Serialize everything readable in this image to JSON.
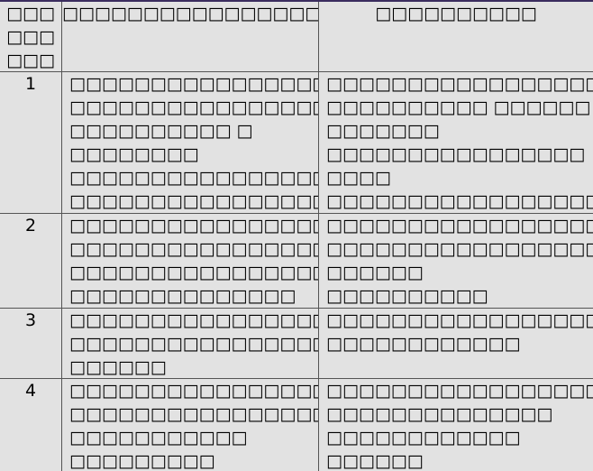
{
  "table": {
    "headers": [
      "□□□\n□□□\n□□□",
      "□□□□□□□□□□□□□□□□□□",
      "□□□□□□□□□□"
    ],
    "rows": [
      {
        "num": "1",
        "col2": "□□□□□□□□□□□□□□□□□□□□\n□□□□□□□□□□□□□□□□□□□□\n□□□□□□□□□□ □ □□□□□□□□\n□□□□□□□□□□□□□□□□□□□□\n□□□□□□□□□□□□□□□□□□□□\n□□□□□",
        "col3": "□□□□□□□□□□□□□□□□□□□□□□□□\n□□□□□□□□□□ □□□□□□ □□□□□□□\n□□□□□□□□□□□□□□□□ □□□□\n□□□□□□□□□□□□□□□□□□□□□□"
      },
      {
        "num": "2",
        "col2": "□□□□□□□□□□□□□□□□□□□□□□□□\n□□□□□□□□□□□□□□□□□□□□□□\n□□□□□□□□□□□□□□□□□□□□\n□□□□□□□□□□□□□□",
        "col3": "□□□□□□□□□□□□□□□□□□□□□□□□\n□□□□□□□□□□□□□□□□□□□□□□\n□□□□□□\n□□□□□□□□□□"
      },
      {
        "num": "3",
        "col2": "□□□□□□□□□□□□□□□□□□□□□\n□□□□□□□□□□□□□□□□ □□□□□□\n□□□□□□□□□□□□□□□□□□□",
        "col3": "□□□□□□□□□□□□□□□□□□□□□□□\n□□□□□□□□□□□□"
      },
      {
        "num": "4",
        "col2": "□□□□□□□□□□□□□□□□□□□□□□□\n□□□□□□□□□□□□□□□□□□□□\n□□□□□□□□□□□ □□□□□□□□□\n□□□□□□□□□□□□□□",
        "col3": "□□□□□□□□□□□□□□□□□□□□□□\n□□□□□□□□□□□□□□ □□□□□□□□□□□□\n□□□□□□\n□□□□□□□□□□□□□□□"
      }
    ]
  }
}
